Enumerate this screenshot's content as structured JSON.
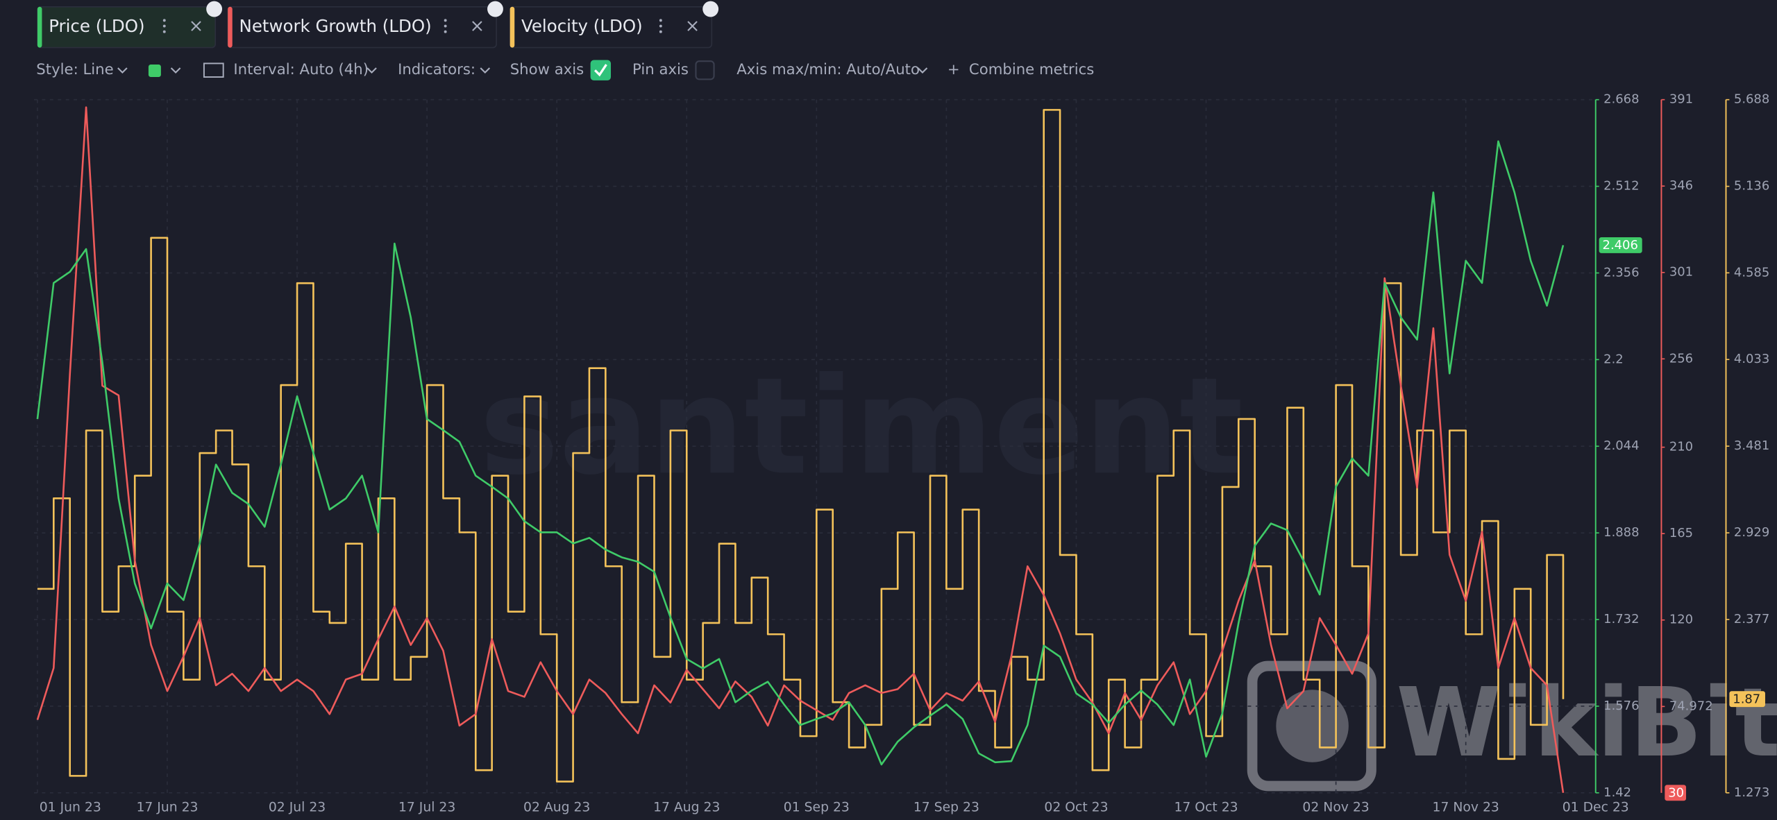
{
  "toolbar": {
    "style": "Style: Line",
    "interval": "Interval: Auto (4h)",
    "indicators": "Indicators:",
    "show_axis": "Show axis",
    "pin_axis": "Pin axis",
    "axis_minmax": "Axis max/min: Auto/Auto",
    "combine": "Combine metrics"
  },
  "watermarks": [
    "santiment",
    "WikiBit"
  ],
  "chart_data": {
    "type": "line",
    "grid": true,
    "categories": [
      "01 Jun 23",
      null,
      null,
      null,
      null,
      null,
      null,
      null,
      "17 Jun 23",
      null,
      null,
      null,
      null,
      null,
      null,
      null,
      "02 Jul 23",
      null,
      null,
      null,
      null,
      null,
      null,
      null,
      "17 Jul 23",
      null,
      null,
      null,
      null,
      null,
      null,
      null,
      "02 Aug 23",
      null,
      null,
      null,
      null,
      null,
      null,
      null,
      "17 Aug 23",
      null,
      null,
      null,
      null,
      null,
      null,
      null,
      "01 Sep 23",
      null,
      null,
      null,
      null,
      null,
      null,
      null,
      "17 Sep 23",
      null,
      null,
      null,
      null,
      null,
      null,
      null,
      "02 Oct 23",
      null,
      null,
      null,
      null,
      null,
      null,
      null,
      "17 Oct 23",
      null,
      null,
      null,
      null,
      null,
      null,
      null,
      "02 Nov 23",
      null,
      null,
      null,
      null,
      null,
      null,
      null,
      "17 Nov 23",
      null,
      null,
      null,
      null,
      null,
      null,
      null,
      "01 Dec 23"
    ],
    "ylim": [
      1.42,
      2.668
    ],
    "yticks": [
      1.42,
      1.576,
      1.732,
      1.888,
      2.044,
      2.2,
      2.356,
      2.512,
      2.668
    ],
    "y2lim": [
      30,
      391
    ],
    "y2ticks": [
      74.972,
      120,
      165,
      210,
      256,
      301,
      346,
      391
    ],
    "y3lim": [
      1.273,
      5.688
    ],
    "y3ticks": [
      1.273,
      2.377,
      2.929,
      3.481,
      4.033,
      4.585,
      5.136,
      5.688
    ],
    "series": [
      {
        "name": "Price (LDO)",
        "color": "#3fcb68",
        "current": 2.406,
        "values": [
          2.093,
          2.338,
          2.358,
          2.399,
          2.195,
          1.95,
          1.797,
          1.716,
          1.797,
          1.767,
          1.869,
          2.011,
          1.96,
          1.94,
          1.899,
          2.011,
          2.134,
          2.032,
          1.93,
          1.95,
          1.991,
          1.889,
          2.409,
          2.276,
          2.093,
          2.073,
          2.052,
          1.991,
          1.971,
          1.95,
          1.909,
          1.889,
          1.889,
          1.869,
          1.879,
          1.858,
          1.844,
          1.836,
          1.818,
          1.736,
          1.661,
          1.644,
          1.661,
          1.583,
          1.604,
          1.62,
          1.579,
          1.542,
          1.553,
          1.563,
          1.583,
          1.542,
          1.471,
          1.512,
          1.538,
          1.559,
          1.579,
          1.553,
          1.491,
          1.475,
          1.477,
          1.542,
          1.685,
          1.665,
          1.599,
          1.579,
          1.546,
          1.579,
          1.604,
          1.579,
          1.542,
          1.624,
          1.485,
          1.563,
          1.726,
          1.865,
          1.905,
          1.893,
          1.838,
          1.777,
          1.971,
          2.022,
          1.991,
          2.338,
          2.276,
          2.236,
          2.501,
          2.175,
          2.378,
          2.338,
          2.593,
          2.501,
          2.378,
          2.297,
          2.406,
          null,
          null
        ]
      },
      {
        "name": "Network Growth (LDO)",
        "color": "#ee5b5b",
        "axis": "y2",
        "current": 30,
        "values": [
          68,
          95,
          248,
          387,
          242,
          237,
          151,
          107,
          83,
          101,
          121,
          86,
          92,
          83,
          95,
          83,
          89,
          83,
          71,
          89,
          92,
          110,
          127,
          107,
          121,
          104,
          65,
          71,
          110,
          83,
          80,
          98,
          83,
          71,
          89,
          82,
          71,
          61,
          86,
          77,
          94,
          84,
          74,
          88,
          80,
          65,
          86,
          78,
          73,
          68,
          82,
          86,
          82,
          84,
          92,
          73,
          82,
          78,
          88,
          67,
          101,
          148,
          133,
          113,
          89,
          77,
          61,
          82,
          68,
          86,
          98,
          71,
          83,
          104,
          130,
          151,
          107,
          74,
          83,
          121,
          107,
          92,
          113,
          298,
          242,
          189,
          272,
          154,
          130,
          166,
          95,
          121,
          95,
          86,
          30,
          null,
          null
        ]
      },
      {
        "name": "Velocity (LDO)",
        "color": "#f4c25a",
        "axis": "y3",
        "step": true,
        "current": 1.87,
        "values": [
          2.572,
          3.149,
          1.381,
          3.581,
          2.427,
          2.716,
          3.293,
          4.808,
          2.427,
          1.994,
          3.437,
          3.581,
          3.365,
          2.716,
          1.994,
          3.87,
          4.519,
          2.427,
          2.355,
          2.86,
          1.994,
          3.149,
          1.994,
          2.139,
          3.87,
          3.149,
          2.932,
          1.417,
          3.293,
          2.427,
          3.798,
          2.283,
          1.345,
          3.437,
          3.978,
          2.716,
          1.85,
          3.293,
          2.139,
          3.581,
          1.994,
          2.355,
          2.86,
          2.355,
          2.644,
          2.283,
          1.994,
          1.634,
          3.077,
          1.85,
          1.562,
          1.706,
          2.572,
          2.932,
          1.706,
          3.293,
          2.572,
          3.077,
          1.922,
          1.562,
          2.139,
          1.994,
          5.623,
          2.788,
          2.283,
          1.417,
          1.994,
          1.562,
          1.994,
          3.293,
          3.581,
          2.283,
          1.634,
          3.221,
          3.654,
          2.716,
          2.283,
          3.726,
          1.994,
          1.562,
          3.87,
          2.716,
          1.562,
          4.519,
          2.788,
          3.581,
          2.932,
          3.581,
          2.283,
          3.004,
          1.489,
          2.572,
          1.706,
          2.788,
          1.87,
          null,
          null
        ]
      }
    ]
  }
}
